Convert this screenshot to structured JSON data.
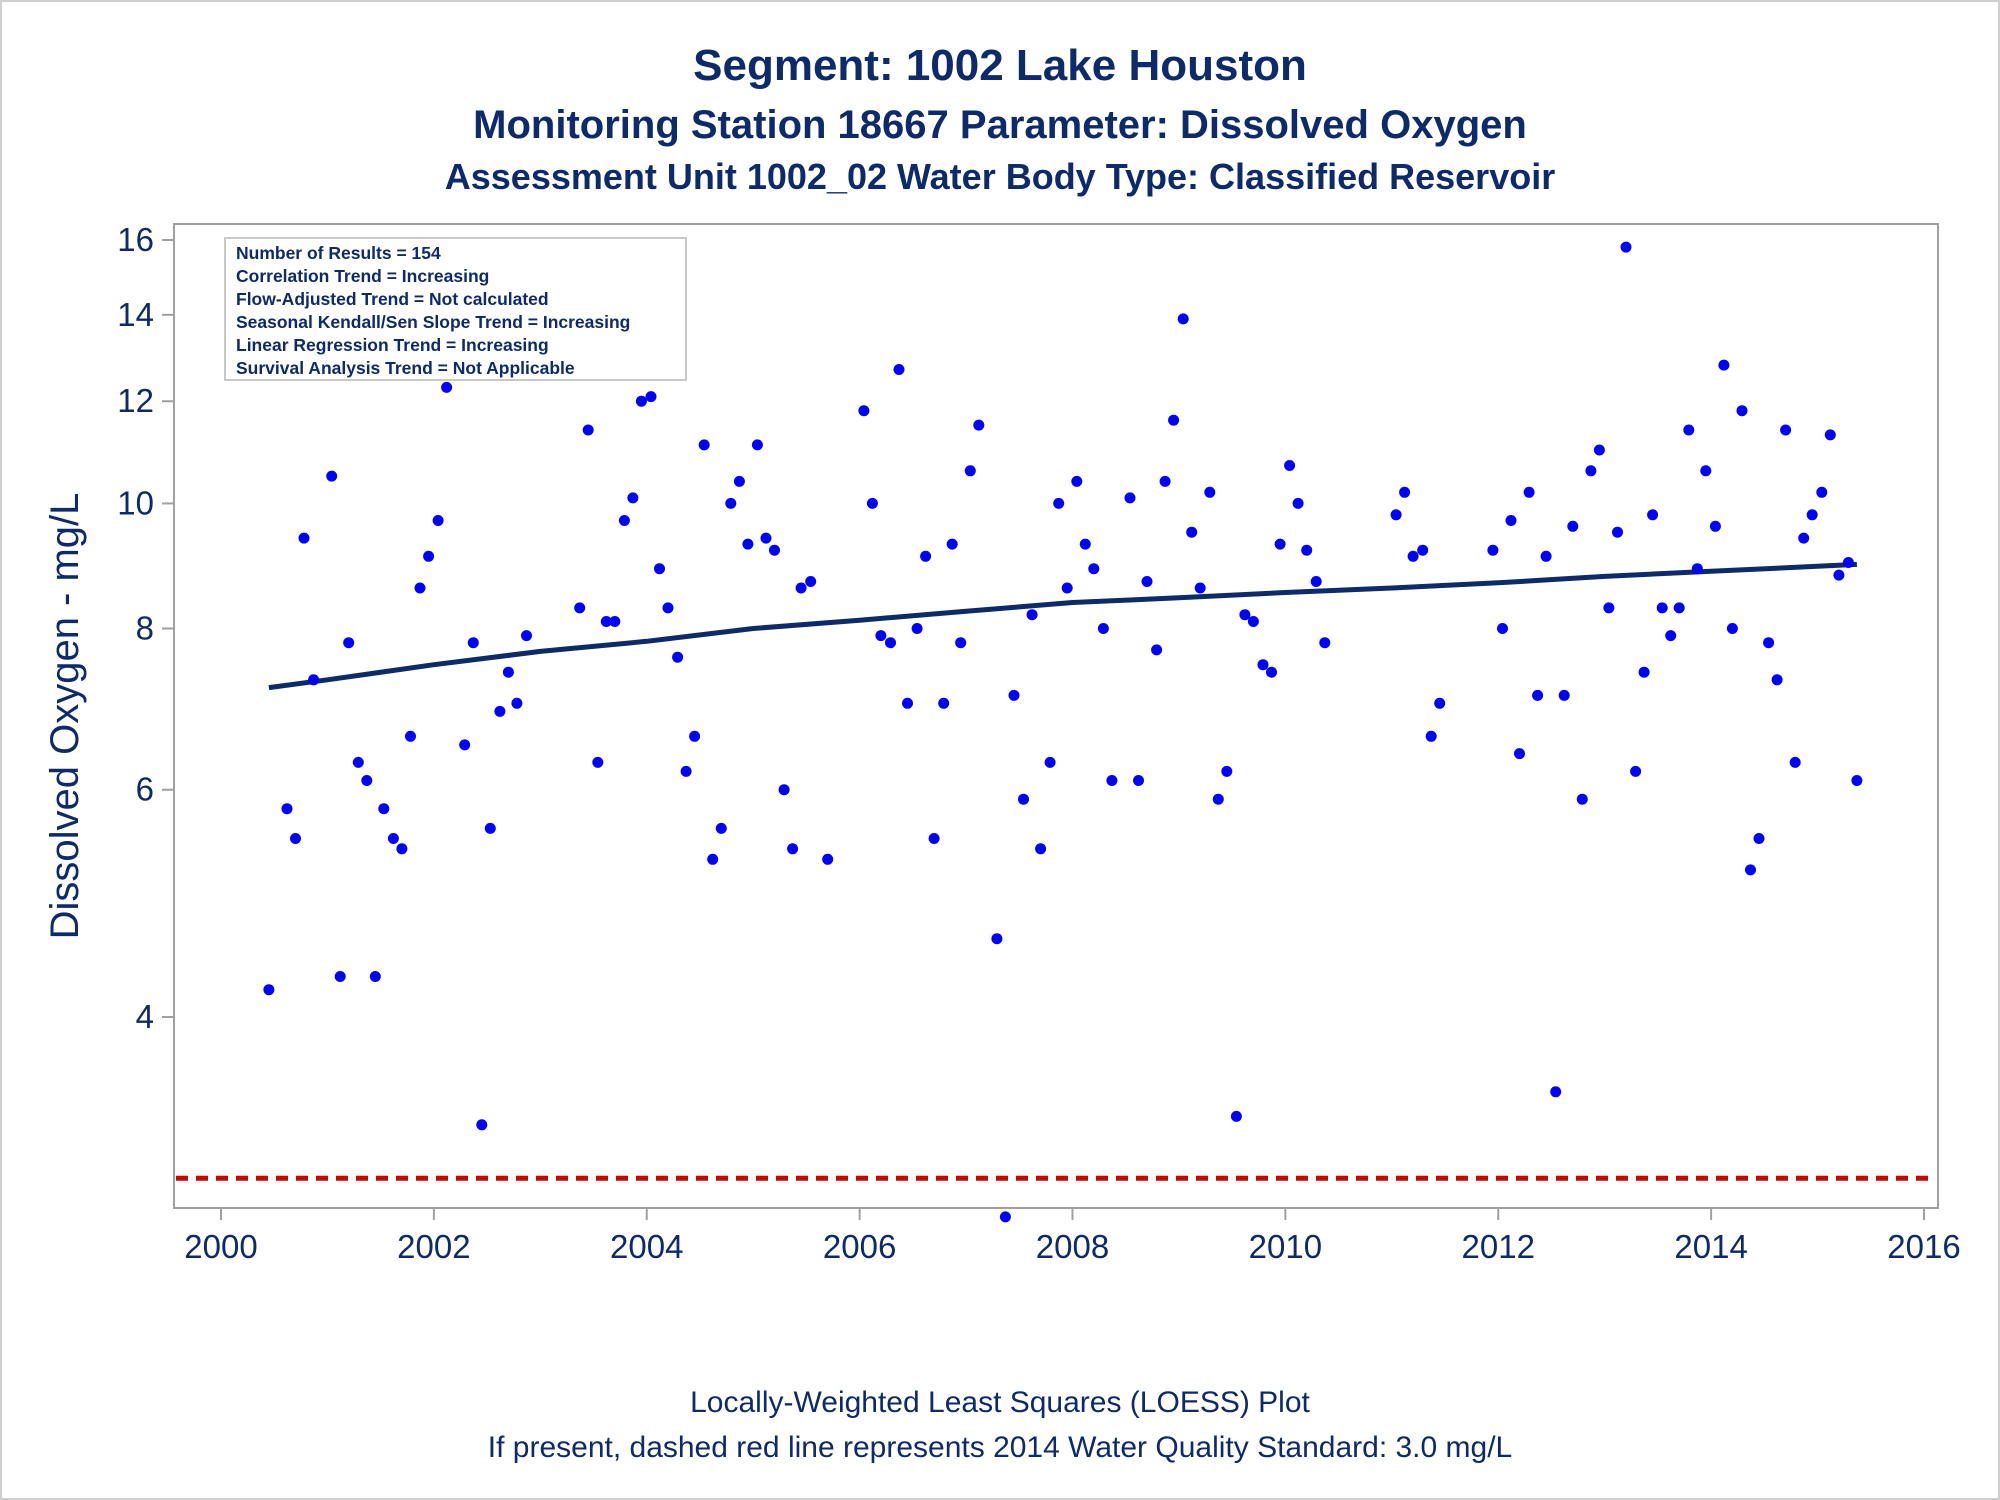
{
  "titles": {
    "line1": "Segment: 1002  Lake Houston",
    "line2": "Monitoring Station 18667 Parameter: Dissolved Oxygen",
    "line3": "Assessment Unit 1002_02   Water Body Type: Classified Reservoir"
  },
  "stats_box": [
    "Number of Results = 154",
    "Correlation Trend = Increasing",
    "Flow-Adjusted Trend = Not calculated",
    "Seasonal Kendall/Sen Slope Trend = Increasing",
    "Linear Regression Trend = Increasing",
    "Survival Analysis Trend = Not Applicable"
  ],
  "footnotes": {
    "line1": "Locally-Weighted Least Squares (LOESS) Plot",
    "line2": "If present, dashed red line represents 2014 Water Quality Standard: 3.0 mg/L"
  },
  "colors": {
    "points": "#0000ff",
    "loess": "#0d2a6b",
    "standard": "#d00000",
    "text": "#0d2a6b",
    "axis": "#a0a0a0"
  },
  "chart_data": {
    "type": "scatter",
    "ylabel": "Dissolved Oxygen - mg/L",
    "xlabel": "",
    "y_scale": "log",
    "xlim": [
      2000,
      2016.2
    ],
    "ylim": [
      2.85,
      16.5
    ],
    "x_ticks": [
      2000,
      2002,
      2004,
      2006,
      2008,
      2010,
      2012,
      2014,
      2016
    ],
    "y_ticks": [
      4,
      6,
      8,
      10,
      12,
      14,
      16
    ],
    "grid": false,
    "standard_line": {
      "y": 3.0
    },
    "points": [
      [
        2000.45,
        4.2
      ],
      [
        2000.62,
        5.8
      ],
      [
        2000.7,
        5.5
      ],
      [
        2000.78,
        9.4
      ],
      [
        2000.87,
        7.3
      ],
      [
        2001.04,
        10.5
      ],
      [
        2001.12,
        4.3
      ],
      [
        2001.2,
        7.8
      ],
      [
        2001.29,
        6.3
      ],
      [
        2001.37,
        6.1
      ],
      [
        2001.45,
        4.3
      ],
      [
        2001.53,
        5.8
      ],
      [
        2001.62,
        5.5
      ],
      [
        2001.7,
        5.4
      ],
      [
        2001.78,
        6.6
      ],
      [
        2001.87,
        8.6
      ],
      [
        2001.95,
        9.1
      ],
      [
        2002.04,
        9.7
      ],
      [
        2002.12,
        12.3
      ],
      [
        2002.29,
        6.5
      ],
      [
        2002.37,
        7.8
      ],
      [
        2002.45,
        3.3
      ],
      [
        2002.53,
        5.6
      ],
      [
        2002.62,
        6.9
      ],
      [
        2002.7,
        7.4
      ],
      [
        2002.78,
        7.0
      ],
      [
        2002.87,
        7.9
      ],
      [
        2003.37,
        8.3
      ],
      [
        2003.45,
        11.4
      ],
      [
        2003.54,
        6.3
      ],
      [
        2003.62,
        8.1
      ],
      [
        2003.7,
        8.1
      ],
      [
        2003.79,
        9.7
      ],
      [
        2003.87,
        10.1
      ],
      [
        2003.95,
        12.0
      ],
      [
        2004.04,
        12.1
      ],
      [
        2004.12,
        8.9
      ],
      [
        2004.2,
        8.3
      ],
      [
        2004.29,
        7.6
      ],
      [
        2004.37,
        6.2
      ],
      [
        2004.45,
        6.6
      ],
      [
        2004.54,
        11.1
      ],
      [
        2004.62,
        5.3
      ],
      [
        2004.7,
        5.6
      ],
      [
        2004.79,
        10.0
      ],
      [
        2004.87,
        10.4
      ],
      [
        2004.95,
        9.3
      ],
      [
        2005.04,
        11.1
      ],
      [
        2005.12,
        9.4
      ],
      [
        2005.2,
        9.2
      ],
      [
        2005.29,
        6.0
      ],
      [
        2005.37,
        5.4
      ],
      [
        2005.45,
        8.6
      ],
      [
        2005.54,
        8.7
      ],
      [
        2005.7,
        5.3
      ],
      [
        2006.04,
        11.8
      ],
      [
        2006.12,
        10.0
      ],
      [
        2006.2,
        7.9
      ],
      [
        2006.29,
        7.8
      ],
      [
        2006.37,
        12.7
      ],
      [
        2006.45,
        7.0
      ],
      [
        2006.54,
        8.0
      ],
      [
        2006.62,
        9.1
      ],
      [
        2006.7,
        5.5
      ],
      [
        2006.79,
        7.0
      ],
      [
        2006.87,
        9.3
      ],
      [
        2006.95,
        7.8
      ],
      [
        2007.04,
        10.6
      ],
      [
        2007.12,
        11.5
      ],
      [
        2007.29,
        4.6
      ],
      [
        2007.37,
        2.8
      ],
      [
        2007.45,
        7.1
      ],
      [
        2007.54,
        5.9
      ],
      [
        2007.62,
        8.2
      ],
      [
        2007.7,
        5.4
      ],
      [
        2007.79,
        6.3
      ],
      [
        2007.87,
        10.0
      ],
      [
        2007.95,
        8.6
      ],
      [
        2008.04,
        10.4
      ],
      [
        2008.12,
        9.3
      ],
      [
        2008.2,
        8.9
      ],
      [
        2008.29,
        8.0
      ],
      [
        2008.37,
        6.1
      ],
      [
        2008.54,
        10.1
      ],
      [
        2008.62,
        6.1
      ],
      [
        2008.7,
        8.7
      ],
      [
        2008.79,
        7.7
      ],
      [
        2008.87,
        10.4
      ],
      [
        2008.95,
        11.6
      ],
      [
        2009.04,
        13.9
      ],
      [
        2009.12,
        9.5
      ],
      [
        2009.2,
        8.6
      ],
      [
        2009.29,
        10.2
      ],
      [
        2009.37,
        5.9
      ],
      [
        2009.45,
        6.2
      ],
      [
        2009.54,
        3.35
      ],
      [
        2009.62,
        8.2
      ],
      [
        2009.7,
        8.1
      ],
      [
        2009.79,
        7.5
      ],
      [
        2009.87,
        7.4
      ],
      [
        2009.95,
        9.3
      ],
      [
        2010.04,
        10.7
      ],
      [
        2010.12,
        10.0
      ],
      [
        2010.2,
        9.2
      ],
      [
        2010.29,
        8.7
      ],
      [
        2010.37,
        7.8
      ],
      [
        2011.04,
        9.8
      ],
      [
        2011.12,
        10.2
      ],
      [
        2011.2,
        9.1
      ],
      [
        2011.29,
        9.2
      ],
      [
        2011.37,
        6.6
      ],
      [
        2011.45,
        7.0
      ],
      [
        2011.95,
        9.2
      ],
      [
        2012.04,
        8.0
      ],
      [
        2012.12,
        9.7
      ],
      [
        2012.2,
        6.4
      ],
      [
        2012.29,
        10.2
      ],
      [
        2012.37,
        7.1
      ],
      [
        2012.45,
        9.1
      ],
      [
        2012.54,
        3.5
      ],
      [
        2012.62,
        7.1
      ],
      [
        2012.7,
        9.6
      ],
      [
        2012.79,
        5.9
      ],
      [
        2012.87,
        10.6
      ],
      [
        2012.95,
        11.0
      ],
      [
        2013.04,
        8.3
      ],
      [
        2013.12,
        9.5
      ],
      [
        2013.2,
        15.8
      ],
      [
        2013.29,
        6.2
      ],
      [
        2013.37,
        7.4
      ],
      [
        2013.45,
        9.8
      ],
      [
        2013.54,
        8.3
      ],
      [
        2013.62,
        7.9
      ],
      [
        2013.7,
        8.3
      ],
      [
        2013.79,
        11.4
      ],
      [
        2013.87,
        8.9
      ],
      [
        2013.95,
        10.6
      ],
      [
        2014.04,
        9.6
      ],
      [
        2014.12,
        12.8
      ],
      [
        2014.2,
        8.0
      ],
      [
        2014.29,
        11.8
      ],
      [
        2014.37,
        5.2
      ],
      [
        2014.45,
        5.5
      ],
      [
        2014.54,
        7.8
      ],
      [
        2014.62,
        7.3
      ],
      [
        2014.7,
        11.4
      ],
      [
        2014.79,
        6.3
      ],
      [
        2014.87,
        9.4
      ],
      [
        2014.95,
        9.8
      ],
      [
        2015.04,
        10.2
      ],
      [
        2015.12,
        11.3
      ],
      [
        2015.2,
        8.8
      ],
      [
        2015.29,
        9.0
      ],
      [
        2015.37,
        6.1
      ]
    ],
    "loess_line": [
      [
        2000.45,
        7.2
      ],
      [
        2001.0,
        7.3
      ],
      [
        2002.0,
        7.5
      ],
      [
        2003.0,
        7.68
      ],
      [
        2004.0,
        7.82
      ],
      [
        2005.0,
        8.0
      ],
      [
        2006.0,
        8.12
      ],
      [
        2007.0,
        8.25
      ],
      [
        2008.0,
        8.38
      ],
      [
        2009.0,
        8.45
      ],
      [
        2010.0,
        8.53
      ],
      [
        2011.0,
        8.6
      ],
      [
        2012.0,
        8.68
      ],
      [
        2013.0,
        8.78
      ],
      [
        2014.0,
        8.86
      ],
      [
        2015.37,
        8.97
      ]
    ]
  }
}
